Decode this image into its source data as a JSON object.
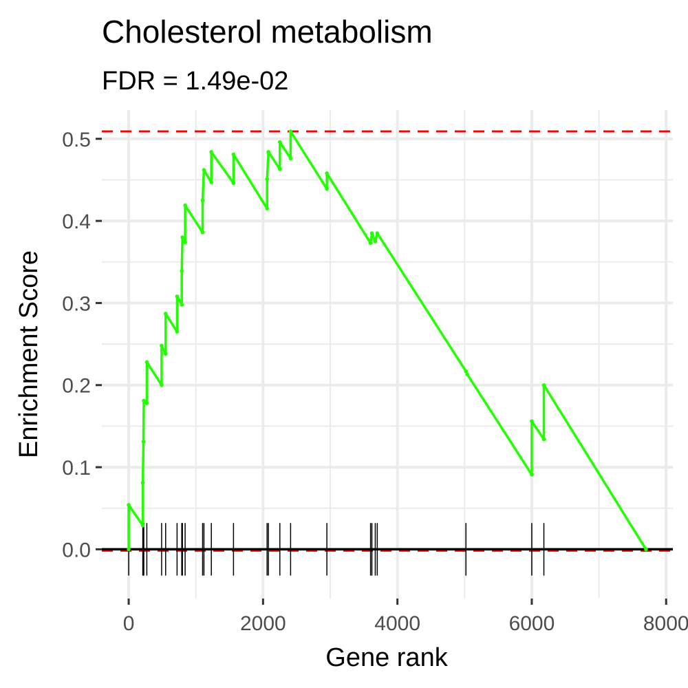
{
  "chart_data": {
    "type": "line",
    "title": "Cholesterol metabolism",
    "subtitle": "FDR = 1.49e-02",
    "xlabel": "Gene rank",
    "ylabel": "Enrichment Score",
    "xlim": [
      -400,
      8100
    ],
    "ylim": [
      -0.06,
      0.535
    ],
    "x_ticks": [
      0,
      2000,
      4000,
      6000,
      8000
    ],
    "x_tick_labels": [
      "0",
      "2000",
      "4000",
      "6000",
      "8000"
    ],
    "y_ticks": [
      0.0,
      0.1,
      0.2,
      0.3,
      0.4,
      0.5
    ],
    "y_tick_labels": [
      "0.0",
      "0.1",
      "0.2",
      "0.3",
      "0.4",
      "0.5"
    ],
    "grid": true,
    "colors": {
      "curve": "#22ff00",
      "ref_line": "#ff0000",
      "zero_line": "#000000",
      "grid": "#ebebeb",
      "ticks": "#000000"
    },
    "max_es": 0.509,
    "min_es": 0.0,
    "series": [
      {
        "values": [
          [
            0,
            0.0
          ],
          [
            0,
            0.054
          ],
          [
            210,
            0.029
          ],
          [
            210,
            0.081
          ],
          [
            220,
            0.131
          ],
          [
            225,
            0.181
          ],
          [
            270,
            0.178
          ],
          [
            270,
            0.228
          ],
          [
            490,
            0.2
          ],
          [
            490,
            0.248
          ],
          [
            550,
            0.238
          ],
          [
            550,
            0.287
          ],
          [
            720,
            0.265
          ],
          [
            720,
            0.308
          ],
          [
            790,
            0.298
          ],
          [
            790,
            0.339
          ],
          [
            800,
            0.38
          ],
          [
            840,
            0.374
          ],
          [
            840,
            0.419
          ],
          [
            1100,
            0.386
          ],
          [
            1100,
            0.425
          ],
          [
            1120,
            0.462
          ],
          [
            1230,
            0.447
          ],
          [
            1230,
            0.484
          ],
          [
            1560,
            0.446
          ],
          [
            1560,
            0.481
          ],
          [
            2060,
            0.415
          ],
          [
            2060,
            0.451
          ],
          [
            2080,
            0.484
          ],
          [
            2250,
            0.463
          ],
          [
            2250,
            0.496
          ],
          [
            2410,
            0.476
          ],
          [
            2410,
            0.509
          ],
          [
            2950,
            0.439
          ],
          [
            2950,
            0.458
          ],
          [
            3600,
            0.373
          ],
          [
            3620,
            0.385
          ],
          [
            3670,
            0.375
          ],
          [
            3700,
            0.385
          ],
          [
            5020,
            0.217
          ],
          [
            5040,
            0.213
          ],
          [
            6000,
            0.091
          ],
          [
            6000,
            0.156
          ],
          [
            6180,
            0.134
          ],
          [
            6180,
            0.2
          ],
          [
            7700,
            0.0
          ]
        ]
      }
    ],
    "hit_ranks": [
      0,
      210,
      220,
      225,
      270,
      490,
      550,
      720,
      790,
      800,
      840,
      1100,
      1120,
      1230,
      1560,
      2060,
      2080,
      2250,
      2410,
      2950,
      3600,
      3620,
      3670,
      3700,
      5020,
      6000,
      6180
    ]
  }
}
